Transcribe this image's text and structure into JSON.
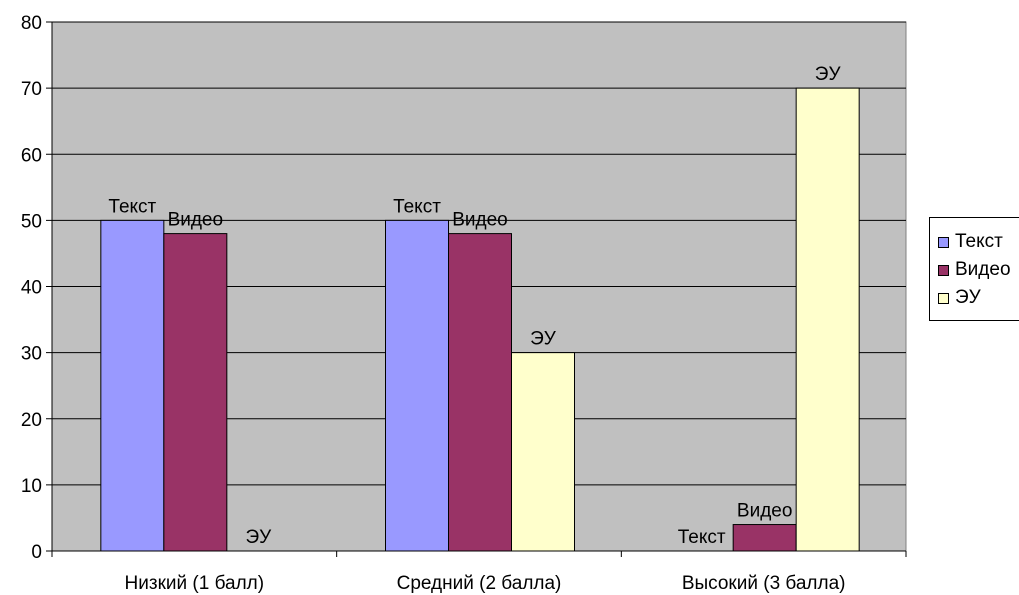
{
  "chart_data": {
    "type": "bar",
    "categories": [
      "Низкий (1 балл)",
      "Средний (2 балла)",
      "Высокий (3 балла)"
    ],
    "series": [
      {
        "name": "Текст",
        "values": [
          50,
          50,
          0
        ],
        "color": "#9999ff",
        "data_label": "Текст"
      },
      {
        "name": "Видео",
        "values": [
          48,
          48,
          4
        ],
        "color": "#993366",
        "data_label": "Видео"
      },
      {
        "name": "ЭУ",
        "values": [
          0,
          30,
          70
        ],
        "color": "#ffffcc",
        "data_label": "ЭУ"
      }
    ],
    "ylim": [
      0,
      80
    ],
    "yticks": [
      0,
      10,
      20,
      30,
      40,
      50,
      60,
      70,
      80
    ],
    "grid": true,
    "plot_background": "#c0c0c0",
    "legend_position": "right",
    "title": "",
    "xlabel": "",
    "ylabel": ""
  }
}
